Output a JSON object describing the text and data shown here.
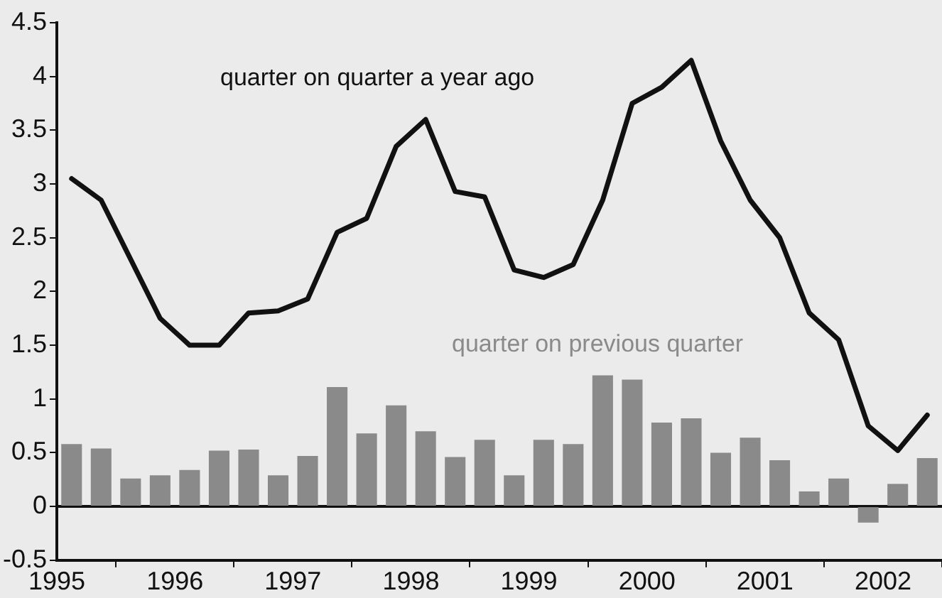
{
  "chart_data": {
    "type": "line",
    "x": [
      1995.125,
      1995.375,
      1995.625,
      1995.875,
      1996.125,
      1996.375,
      1996.625,
      1996.875,
      1997.125,
      1997.375,
      1997.625,
      1997.875,
      1998.125,
      1998.375,
      1998.625,
      1998.875,
      1999.125,
      1999.375,
      1999.625,
      1999.875,
      2000.125,
      2000.375,
      2000.625,
      2000.875,
      2001.125,
      2001.375,
      2001.625,
      2001.875,
      2002.125,
      2002.375
    ],
    "series": [
      {
        "name": "quarter on quarter a year ago",
        "color": "#111111",
        "values": [
          3.05,
          2.85,
          2.3,
          1.75,
          1.5,
          1.5,
          1.8,
          1.82,
          1.93,
          2.55,
          2.68,
          3.35,
          3.6,
          2.93,
          2.88,
          2.2,
          2.13,
          2.25,
          2.85,
          3.75,
          3.9,
          4.15,
          3.4,
          2.85,
          2.5,
          1.8,
          1.55,
          0.75,
          0.52,
          0.85
        ]
      },
      {
        "name": "quarter on previous quarter",
        "type": "bar",
        "color": "#8a8a8a",
        "values": [
          0.58,
          0.54,
          0.26,
          0.29,
          0.34,
          0.52,
          0.53,
          0.29,
          0.47,
          1.11,
          0.68,
          0.94,
          0.7,
          0.46,
          0.62,
          0.29,
          0.62,
          0.58,
          1.22,
          1.18,
          0.78,
          0.82,
          0.5,
          0.64,
          0.43,
          0.14,
          0.26,
          -0.15,
          0.21,
          0.45
        ]
      }
    ],
    "xlim": [
      1995,
      2002.5
    ],
    "xticks": [
      1995,
      1996,
      1997,
      1998,
      1999,
      2000,
      2001,
      2002
    ],
    "ylim": [
      -0.5,
      4.5
    ],
    "yticks": [
      -0.5,
      0,
      0.5,
      1,
      1.5,
      2,
      2.5,
      3,
      3.5,
      4,
      4.5
    ],
    "ref_lines": [
      {
        "axis": "y",
        "value": 0,
        "color": "#111111"
      }
    ],
    "grid": false,
    "legend": false,
    "marker": "none",
    "line_style": "solid"
  }
}
